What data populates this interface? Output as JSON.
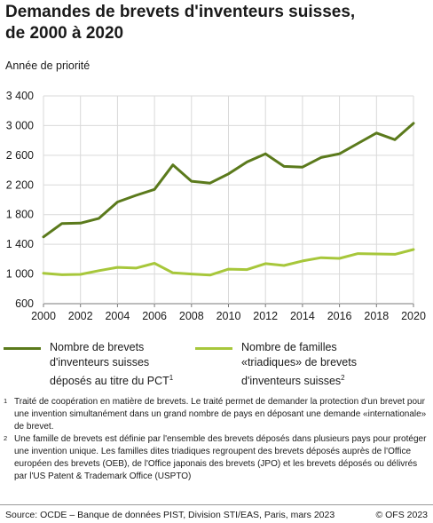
{
  "title_lines": [
    "Demandes de brevets d'inventeurs suisses,",
    "de 2000 à 2020"
  ],
  "chart_data": {
    "type": "line",
    "title": "Demandes de brevets d'inventeurs suisses, de 2000 à 2020",
    "ylabel": "Année de priorité",
    "xlabel": "",
    "x": [
      2000,
      2001,
      2002,
      2003,
      2004,
      2005,
      2006,
      2007,
      2008,
      2009,
      2010,
      2011,
      2012,
      2013,
      2014,
      2015,
      2016,
      2017,
      2018,
      2019,
      2020
    ],
    "xticks": [
      "2000",
      "2002",
      "2004",
      "2006",
      "2008",
      "2010",
      "2012",
      "2014",
      "2016",
      "2018",
      "2020"
    ],
    "yticks": [
      "600",
      "1 000",
      "1 400",
      "1 800",
      "2 200",
      "2 600",
      "3 000",
      "3 400"
    ],
    "ylim": [
      600,
      3400
    ],
    "grid": true,
    "legend_position": "bottom",
    "series": [
      {
        "name": "Nombre de brevets d'inventeurs suisses déposés au titre du PCT",
        "legend_lines": [
          "Nombre de brevets",
          "d'inventeurs suisses",
          "déposés au titre du PCT"
        ],
        "note": "1",
        "color": "#5b7a1c",
        "values": [
          1500,
          1680,
          1685,
          1750,
          1970,
          2060,
          2140,
          2470,
          2250,
          2225,
          2350,
          2510,
          2620,
          2450,
          2440,
          2570,
          2620,
          2760,
          2900,
          2810,
          3030
        ]
      },
      {
        "name": "Nombre de familles «triadiques» de brevets d'inventeurs suisses",
        "legend_lines": [
          "Nombre de familles",
          "«triadiques» de brevets",
          "d'inventeurs suisses"
        ],
        "note": "2",
        "color": "#a7c73b",
        "values": [
          1010,
          990,
          995,
          1045,
          1090,
          1080,
          1145,
          1015,
          1000,
          985,
          1065,
          1060,
          1140,
          1115,
          1175,
          1220,
          1210,
          1275,
          1270,
          1265,
          1330
        ]
      }
    ]
  },
  "footnotes": [
    {
      "num": "1",
      "text": "Traité de coopération en matière de brevets. Le traité permet de demander la protection d'un brevet pour une invention simultanément dans un grand nombre de pays en déposant une demande «internationale» de brevet."
    },
    {
      "num": "2",
      "text": "Une famille de brevets est définie par l'ensemble des brevets déposés dans plusieurs pays pour protéger une invention unique. Les familles dites triadiques regroupent des brevets déposés auprès de l'Office européen des brevets (OEB), de l'Office japonais des brevets (JPO) et les brevets déposés ou délivrés par l'US Patent & Trademark Office (USPTO)"
    }
  ],
  "source": "Source: OCDE – Banque de données PIST, Division STI/EAS, Paris, mars 2023",
  "copyright": "© OFS 2023"
}
